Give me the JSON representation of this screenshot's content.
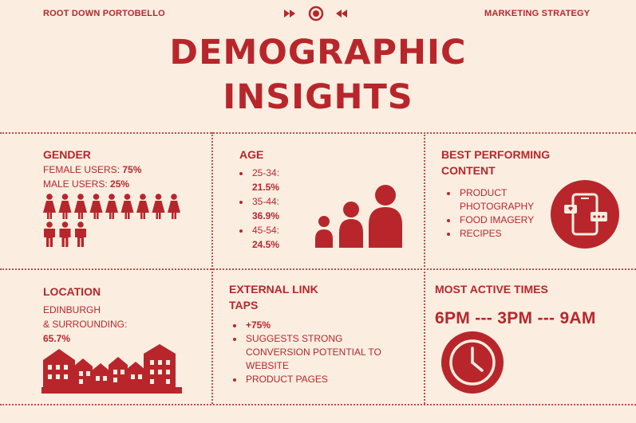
{
  "header": {
    "left": "ROOT DOWN PORTOBELLO",
    "right": "MARKETING STRATEGY",
    "title_line1": "DEMOGRAPHIC",
    "title_line2": "INSIGHTS",
    "icons": [
      "fast-forward-icon",
      "record-icon",
      "rewind-icon"
    ]
  },
  "gender": {
    "heading": "GENDER",
    "female_label": "FEMALE USERS: ",
    "female_value": "75%",
    "male_label": "MALE USERS: ",
    "male_value": "25%",
    "female_fraction": 0.75
  },
  "age": {
    "heading": "AGE",
    "items": [
      {
        "range": "25-34:",
        "value": "21.5%"
      },
      {
        "range": "35-44:",
        "value": "36.9%"
      },
      {
        "range": "45-54:",
        "value": "24.5%"
      }
    ]
  },
  "content": {
    "heading_line1": "BEST PERFORMING",
    "heading_line2": "CONTENT",
    "items": [
      "PRODUCT PHOTOGRAPHY",
      "FOOD IMAGERY",
      "RECIPES"
    ]
  },
  "location": {
    "heading": "LOCATION",
    "line1": "EDINBURGH",
    "line2": "& SURROUNDING:",
    "value": "65.7%"
  },
  "taps": {
    "heading_line1": "EXTERNAL LINK",
    "heading_line2": "TAPS",
    "items": [
      "+75%",
      "SUGGESTS STRONG CONVERSION POTENTIAL TO WEBSITE",
      "PRODUCT PAGES"
    ]
  },
  "active": {
    "heading": "MOST ACTIVE TIMES",
    "times": "6PM --- 3PM --- 9AM"
  },
  "colors": {
    "accent": "#b8262b",
    "background": "#fbeee1"
  }
}
